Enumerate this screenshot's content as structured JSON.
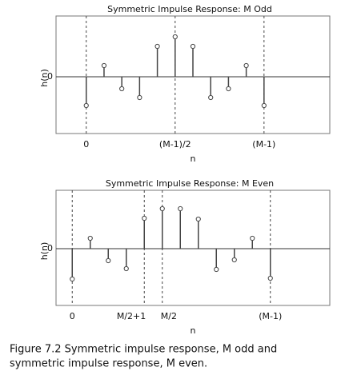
{
  "chart_data": [
    {
      "type": "stem",
      "title": "Symmetric Impulse Response: M Odd",
      "ylabel": "h(n)",
      "xlabel": "n",
      "x": [
        0,
        1,
        2,
        3,
        4,
        5,
        6,
        7,
        8,
        9,
        10
      ],
      "values": [
        -36,
        14,
        -15,
        -26,
        38,
        50,
        38,
        -26,
        -15,
        14,
        -36
      ],
      "xlim": [
        -1.7,
        13.7
      ],
      "ylim": [
        -71,
        76
      ],
      "xticks": [
        {
          "value": 0,
          "label": "0"
        },
        {
          "value": 5,
          "label": "(M-1)/2"
        },
        {
          "value": 10,
          "label": "(M-1)"
        }
      ],
      "yticks": [
        0
      ],
      "color": "#444444"
    },
    {
      "type": "stem",
      "title": "Symmetric Impulse Response: M Even",
      "ylabel": "h(n)",
      "xlabel": "n",
      "x": [
        0,
        1,
        2,
        3,
        4,
        5,
        6,
        7,
        8,
        9,
        10,
        11
      ],
      "values": [
        -38,
        13,
        -15,
        -25,
        38,
        50,
        50,
        37,
        -26,
        -14,
        13,
        -37
      ],
      "xlim": [
        -0.9,
        14.3
      ],
      "ylim": [
        -71,
        73
      ],
      "xticks": [
        {
          "value": 0,
          "label": "0"
        },
        {
          "value": 4,
          "label": "M/2+1"
        },
        {
          "value": 5,
          "label": "M/2"
        },
        {
          "value": 11,
          "label": "(M-1)"
        }
      ],
      "yticks": [
        0
      ],
      "color": "#444444"
    }
  ],
  "caption": [
    "Figure 7.2 Symmetric impulse response, M odd and",
    "symmetric impulse response, M even."
  ]
}
